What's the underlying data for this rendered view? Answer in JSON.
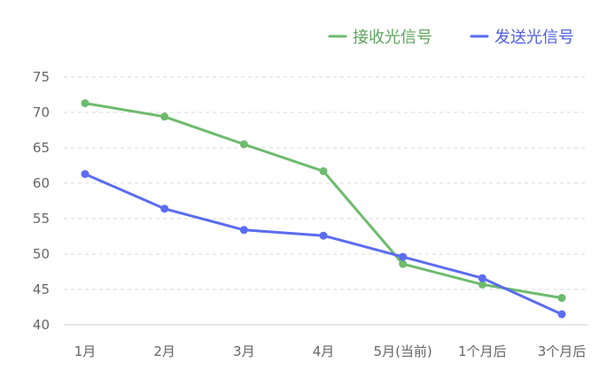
{
  "chart_data": {
    "type": "line",
    "categories": [
      "1月",
      "2月",
      "3月",
      "4月",
      "5月(当前)",
      "1个月后",
      "3个月后"
    ],
    "series": [
      {
        "name": "接收光信号",
        "color": "#6dbb6d",
        "values": [
          71.3,
          69.4,
          65.5,
          61.7,
          48.6,
          45.7,
          43.8
        ]
      },
      {
        "name": "发送光信号",
        "color": "#5b6cf0",
        "values": [
          61.3,
          56.4,
          53.4,
          52.6,
          49.6,
          46.6,
          41.5
        ]
      }
    ],
    "ylim": [
      40,
      75
    ],
    "yticks": [
      40,
      45,
      50,
      55,
      60,
      65,
      70,
      75
    ],
    "grid": true,
    "legend_position": "top-right",
    "title": "",
    "xlabel": "",
    "ylabel": ""
  }
}
